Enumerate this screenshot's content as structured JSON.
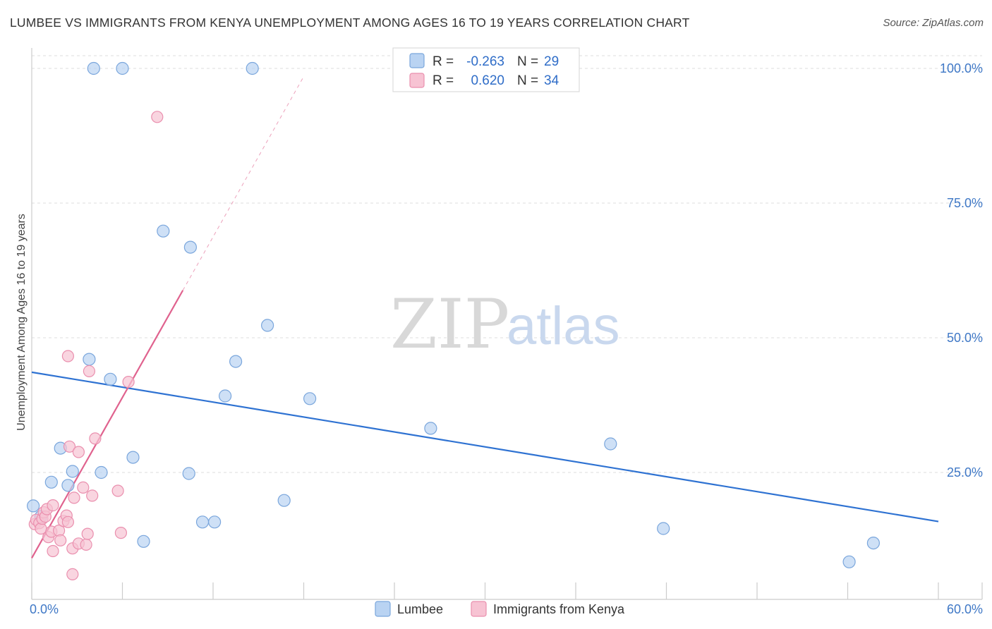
{
  "title": "LUMBEE VS IMMIGRANTS FROM KENYA UNEMPLOYMENT AMONG AGES 16 TO 19 YEARS CORRELATION CHART",
  "source": "Source: ZipAtlas.com",
  "watermark": {
    "zip": "ZIP",
    "atlas": "atlas"
  },
  "colors": {
    "lumbee_fill": "#b9d3f2",
    "lumbee_stroke": "#7aa6dc",
    "lumbee_line": "#2e72d2",
    "kenya_fill": "#f7c3d3",
    "kenya_stroke": "#ea8fae",
    "kenya_line": "#e0628e",
    "grid": "#dddddd",
    "axis": "#cccccc",
    "tick_text": "#3f78c6"
  },
  "stats_legend": {
    "lumbee": {
      "r_label": "R =",
      "r_value": "-0.263",
      "n_label": "N =",
      "n_value": "29"
    },
    "kenya": {
      "r_label": "R =",
      "r_value": "0.620",
      "n_label": "N =",
      "n_value": "34"
    }
  },
  "chart_data": {
    "type": "scatter",
    "title": "LUMBEE VS IMMIGRANTS FROM KENYA UNEMPLOYMENT AMONG AGES 16 TO 19 YEARS CORRELATION CHART",
    "xlabel": "",
    "ylabel": "Unemployment Among Ages 16 to 19 years",
    "xlim": [
      0,
      60
    ],
    "ylim": [
      0,
      102
    ],
    "x_tick_labels": [
      {
        "value": 0,
        "label": "0.0%"
      },
      {
        "value": 60,
        "label": "60.0%"
      }
    ],
    "y_ticks": [
      {
        "value": 25,
        "label": "25.0%"
      },
      {
        "value": 50,
        "label": "50.0%"
      },
      {
        "value": 75,
        "label": "75.0%"
      },
      {
        "value": 100,
        "label": "100.0%"
      }
    ],
    "x_minor_ticks": [
      0,
      6,
      12,
      18,
      24,
      30,
      36,
      42,
      48,
      54,
      60
    ],
    "grid": true,
    "legend_position": "bottom-center",
    "series": [
      {
        "name": "Lumbee",
        "color": "#b9d3f2",
        "points": [
          [
            0.1,
            18.8
          ],
          [
            0.6,
            16.8
          ],
          [
            1.3,
            23.2
          ],
          [
            1.9,
            29.5
          ],
          [
            2.4,
            22.6
          ],
          [
            2.7,
            25.2
          ],
          [
            3.8,
            46.0
          ],
          [
            4.1,
            100.0
          ],
          [
            4.6,
            25.0
          ],
          [
            5.2,
            42.3
          ],
          [
            6.0,
            100.0
          ],
          [
            6.7,
            27.8
          ],
          [
            7.4,
            12.2
          ],
          [
            8.7,
            69.8
          ],
          [
            10.4,
            24.8
          ],
          [
            10.5,
            66.8
          ],
          [
            11.3,
            15.8
          ],
          [
            12.1,
            15.8
          ],
          [
            12.8,
            39.2
          ],
          [
            13.5,
            45.6
          ],
          [
            14.6,
            100.0
          ],
          [
            15.6,
            52.3
          ],
          [
            16.7,
            19.8
          ],
          [
            18.4,
            38.7
          ],
          [
            26.4,
            33.2
          ],
          [
            38.3,
            30.3
          ],
          [
            41.8,
            14.6
          ],
          [
            54.1,
            8.4
          ],
          [
            55.7,
            11.9
          ]
        ],
        "trend": {
          "x": [
            0,
            60
          ],
          "y": [
            43.6,
            15.9
          ]
        }
      },
      {
        "name": "Immigrants from Kenya",
        "color": "#f7c3d3",
        "points": [
          [
            0.2,
            15.4
          ],
          [
            0.3,
            16.2
          ],
          [
            0.5,
            15.6
          ],
          [
            0.6,
            14.6
          ],
          [
            0.7,
            16.4
          ],
          [
            0.8,
            17.6
          ],
          [
            0.9,
            16.8
          ],
          [
            1.0,
            18.2
          ],
          [
            1.1,
            13.0
          ],
          [
            1.3,
            14.0
          ],
          [
            1.4,
            18.9
          ],
          [
            1.4,
            10.4
          ],
          [
            1.8,
            14.2
          ],
          [
            1.9,
            12.4
          ],
          [
            2.1,
            16.0
          ],
          [
            2.3,
            17.0
          ],
          [
            2.4,
            15.8
          ],
          [
            2.4,
            46.6
          ],
          [
            2.5,
            29.8
          ],
          [
            2.7,
            10.9
          ],
          [
            2.7,
            6.1
          ],
          [
            2.8,
            20.3
          ],
          [
            3.1,
            11.8
          ],
          [
            3.1,
            28.8
          ],
          [
            3.4,
            22.2
          ],
          [
            3.6,
            11.6
          ],
          [
            3.7,
            13.6
          ],
          [
            3.8,
            43.8
          ],
          [
            4.0,
            20.7
          ],
          [
            4.2,
            31.3
          ],
          [
            5.7,
            21.6
          ],
          [
            5.9,
            13.8
          ],
          [
            6.4,
            41.8
          ],
          [
            8.3,
            91.0
          ]
        ],
        "trend": {
          "x": [
            0,
            10
          ],
          "y": [
            9.1,
            58.8
          ]
        },
        "trend_extension": {
          "x": [
            10,
            18
          ],
          "y": [
            58.8,
            98.5
          ]
        }
      }
    ]
  },
  "legend": [
    {
      "name": "Lumbee"
    },
    {
      "name": "Immigrants from Kenya"
    }
  ]
}
